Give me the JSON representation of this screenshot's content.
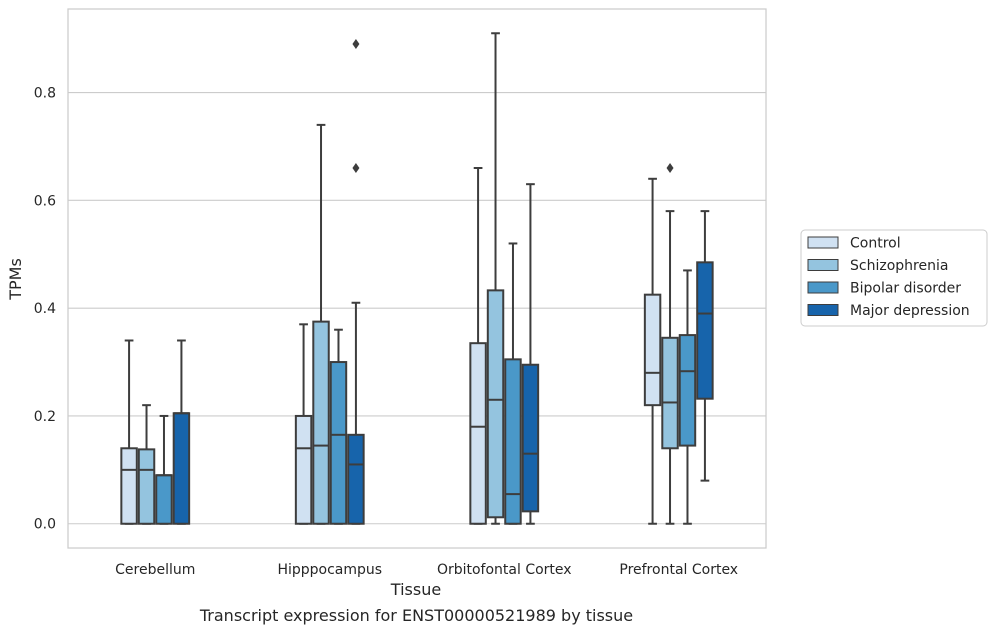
{
  "caption": "Transcript expression for ENST00000521989 by tissue",
  "chart_data": {
    "type": "box",
    "xlabel": "Tissue",
    "ylabel": "TPMs",
    "ylim": [
      -0.045,
      0.955
    ],
    "yticks": [
      0.0,
      0.2,
      0.4,
      0.6,
      0.8
    ],
    "ytick_labels": [
      "0.0",
      "0.2",
      "0.4",
      "0.6",
      "0.8"
    ],
    "grid": "horizontal",
    "legend_position": "right",
    "categories": [
      "Cerebellum",
      "Hipppocampus",
      "Orbitofontal Cortex",
      "Prefrontal Cortex"
    ],
    "series": [
      {
        "name": "Control",
        "color": "#d0e1f2",
        "boxes": [
          {
            "min": 0.0,
            "q1": 0.0,
            "median": 0.1,
            "q3": 0.14,
            "max": 0.34,
            "outliers": []
          },
          {
            "min": 0.0,
            "q1": 0.0,
            "median": 0.14,
            "q3": 0.2,
            "max": 0.37,
            "outliers": []
          },
          {
            "min": 0.0,
            "q1": 0.0,
            "median": 0.18,
            "q3": 0.335,
            "max": 0.66,
            "outliers": []
          },
          {
            "min": 0.0,
            "q1": 0.22,
            "median": 0.28,
            "q3": 0.425,
            "max": 0.64,
            "outliers": []
          }
        ]
      },
      {
        "name": "Schizophrenia",
        "color": "#94c4df",
        "boxes": [
          {
            "min": 0.0,
            "q1": 0.0,
            "median": 0.1,
            "q3": 0.138,
            "max": 0.22,
            "outliers": []
          },
          {
            "min": 0.0,
            "q1": 0.0,
            "median": 0.145,
            "q3": 0.375,
            "max": 0.74,
            "outliers": []
          },
          {
            "min": 0.0,
            "q1": 0.012,
            "median": 0.23,
            "q3": 0.433,
            "max": 0.91,
            "outliers": []
          },
          {
            "min": 0.0,
            "q1": 0.14,
            "median": 0.225,
            "q3": 0.345,
            "max": 0.58,
            "outliers": [
              0.66
            ]
          }
        ]
      },
      {
        "name": "Bipolar disorder",
        "color": "#4a98c9",
        "boxes": [
          {
            "min": 0.0,
            "q1": 0.0,
            "median": 0.09,
            "q3": 0.09,
            "max": 0.2,
            "outliers": []
          },
          {
            "min": 0.0,
            "q1": 0.0,
            "median": 0.165,
            "q3": 0.3,
            "max": 0.36,
            "outliers": []
          },
          {
            "min": 0.0,
            "q1": 0.0,
            "median": 0.055,
            "q3": 0.305,
            "max": 0.52,
            "outliers": []
          },
          {
            "min": 0.0,
            "q1": 0.145,
            "median": 0.283,
            "q3": 0.35,
            "max": 0.47,
            "outliers": []
          }
        ]
      },
      {
        "name": "Major depression",
        "color": "#1764ab",
        "boxes": [
          {
            "min": 0.0,
            "q1": 0.0,
            "median": 0.205,
            "q3": 0.205,
            "max": 0.34,
            "outliers": []
          },
          {
            "min": 0.0,
            "q1": 0.0,
            "median": 0.11,
            "q3": 0.165,
            "max": 0.41,
            "outliers": [
              0.66,
              0.89
            ]
          },
          {
            "min": 0.0,
            "q1": 0.023,
            "median": 0.13,
            "q3": 0.295,
            "max": 0.63,
            "outliers": []
          },
          {
            "min": 0.08,
            "q1": 0.232,
            "median": 0.39,
            "q3": 0.485,
            "max": 0.58,
            "outliers": []
          }
        ]
      }
    ]
  }
}
